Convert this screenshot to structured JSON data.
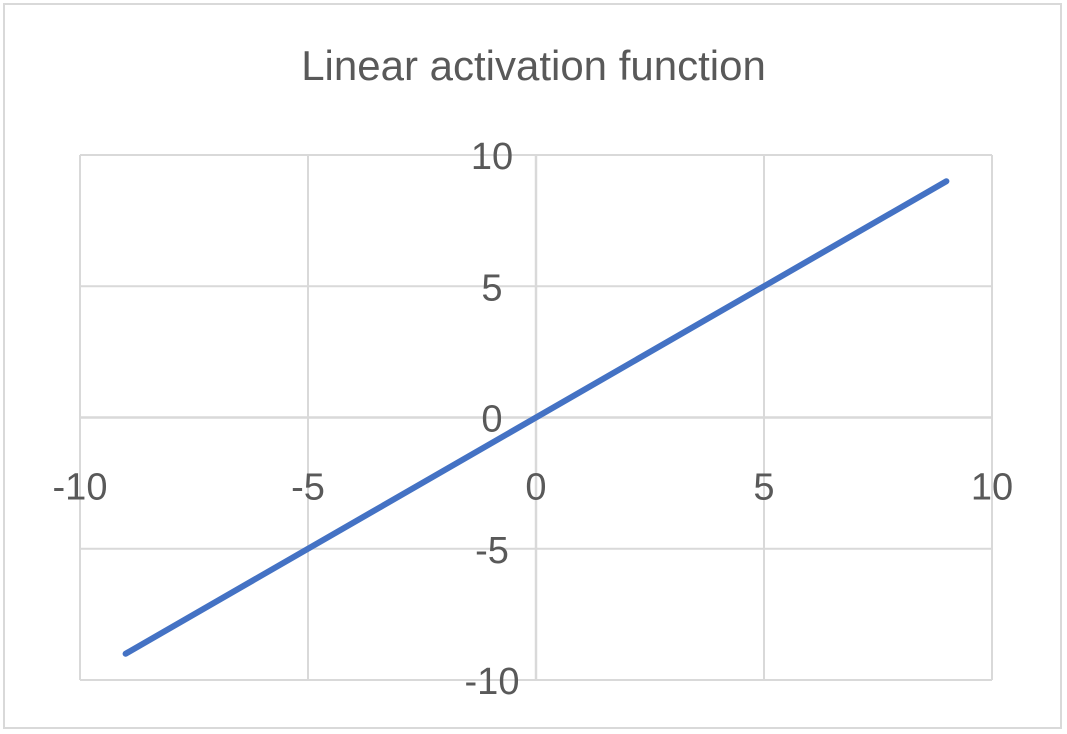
{
  "chart_data": {
    "type": "line",
    "title": "Linear activation function",
    "xlabel": "",
    "ylabel": "",
    "xlim": [
      -10,
      10
    ],
    "ylim": [
      -10,
      10
    ],
    "x_ticks": [
      "-10",
      "-5",
      "0",
      "5",
      "10"
    ],
    "y_ticks": [
      "10",
      "5",
      "0",
      "-5",
      "-10"
    ],
    "grid": true,
    "legend": "none",
    "series": [
      {
        "color": "#4472c4",
        "x": [
          -9,
          9
        ],
        "y": [
          -9,
          9
        ]
      }
    ]
  },
  "colors": {
    "line": "#4472c4",
    "grid": "#d9d9d9",
    "text": "#595959",
    "border": "#d9d9d9"
  }
}
